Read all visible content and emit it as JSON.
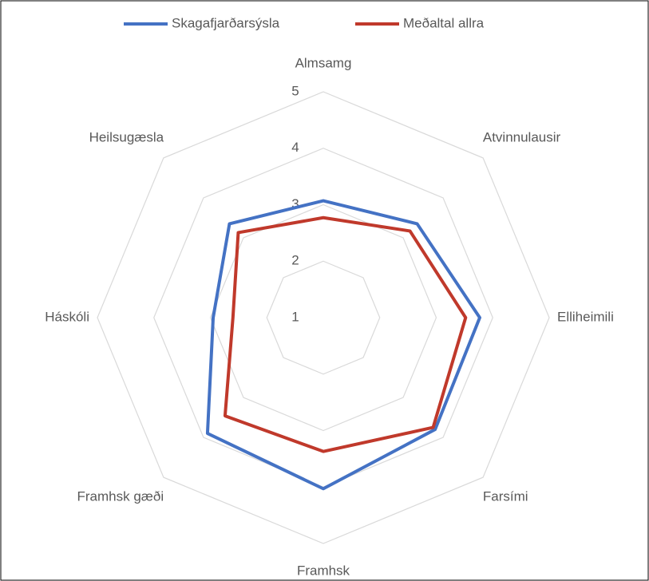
{
  "chart_data": {
    "type": "radar",
    "categories": [
      "Almsamg",
      "Atvinnulausir",
      "Elliheimili",
      "Farsími",
      "Framhsk",
      "Framhsk gæði",
      "Háskóli",
      "Heilsugæsla"
    ],
    "series": [
      {
        "name": "Skagafjarðarsýsla",
        "color": "#4472c4",
        "values": [
          3.07,
          3.35,
          3.77,
          3.8,
          4.03,
          3.9,
          2.95,
          3.35
        ]
      },
      {
        "name": "Meðaltal allra",
        "color": "#c0392b",
        "values": [
          2.77,
          3.17,
          3.52,
          3.75,
          3.37,
          3.46,
          2.6,
          3.13
        ]
      }
    ],
    "ylim": [
      1,
      5
    ],
    "yticks": [
      1,
      2,
      3,
      4,
      5
    ],
    "grid": true,
    "legend": "top"
  }
}
